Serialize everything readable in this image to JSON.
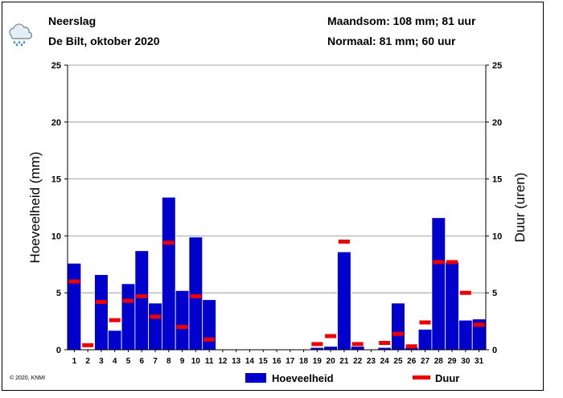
{
  "header": {
    "title": "Neerslag",
    "subtitle": "De Bilt, oktober 2020",
    "month_sum": "Maandsom: 108 mm; 81 uur",
    "normal": "Normaal: 81 mm; 60 uur",
    "icon": "rain-cloud-icon"
  },
  "copyright": "© 2020, KNMI",
  "chart_data": {
    "type": "bar",
    "categories": [
      "1",
      "2",
      "3",
      "4",
      "5",
      "6",
      "7",
      "8",
      "9",
      "10",
      "11",
      "12",
      "13",
      "14",
      "15",
      "16",
      "17",
      "18",
      "19",
      "20",
      "21",
      "22",
      "23",
      "24",
      "25",
      "26",
      "27",
      "28",
      "29",
      "30",
      "31"
    ],
    "series": [
      {
        "name": "Hoeveelheid",
        "type": "bar",
        "unit": "mm",
        "color": "#0000cc",
        "values": [
          7.6,
          0,
          6.6,
          1.7,
          5.8,
          8.7,
          4.1,
          13.4,
          5.2,
          9.9,
          4.4,
          0,
          0,
          0,
          0,
          0,
          0,
          0,
          0.2,
          0.3,
          8.6,
          0.3,
          0,
          0.2,
          4.1,
          0.2,
          1.8,
          11.6,
          7.7,
          2.6,
          2.7
        ]
      },
      {
        "name": "Duur",
        "type": "marker",
        "unit": "uren",
        "color": "#ee0000",
        "values": [
          6.0,
          0.4,
          4.2,
          2.6,
          4.3,
          4.7,
          2.9,
          9.4,
          2.0,
          4.7,
          0.9,
          0,
          0,
          0,
          0,
          0,
          0,
          0,
          0.5,
          1.2,
          9.5,
          0.5,
          0,
          0.6,
          1.4,
          0.3,
          2.4,
          7.7,
          7.7,
          5.0,
          2.2
        ]
      }
    ],
    "ylabel": "Hoeveelheid (mm)",
    "y2label": "Duur (uren)",
    "ylim": [
      0,
      25
    ],
    "y2lim": [
      0,
      25
    ],
    "yticks": [
      0,
      5,
      10,
      15,
      20,
      25
    ],
    "grid": true,
    "legend": [
      {
        "label": "Hoeveelheid",
        "color": "#0000cc"
      },
      {
        "label": "Duur",
        "color": "#ee0000"
      }
    ],
    "legend_position": "bottom"
  }
}
